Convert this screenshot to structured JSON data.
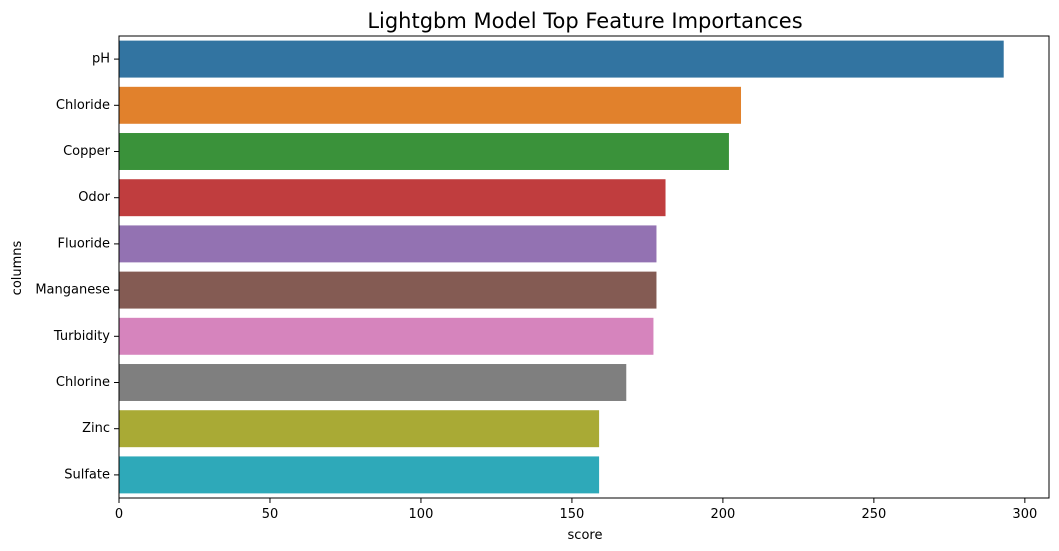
{
  "chart_data": {
    "type": "bar",
    "orientation": "horizontal",
    "title": "Lightgbm Model Top Feature Importances",
    "xlabel": "score",
    "ylabel": "columns",
    "xlim": [
      0,
      308
    ],
    "xticks": [
      0,
      50,
      100,
      150,
      200,
      250,
      300
    ],
    "grid": false,
    "categories": [
      "pH",
      "Chloride",
      "Copper",
      "Odor",
      "Fluoride",
      "Manganese",
      "Turbidity",
      "Chlorine",
      "Zinc",
      "Sulfate"
    ],
    "values": [
      293,
      206,
      202,
      181,
      178,
      178,
      177,
      168,
      159,
      159
    ],
    "colors": [
      "#3274a1",
      "#e1812c",
      "#3a923a",
      "#c03d3e",
      "#9372b2",
      "#845b53",
      "#d684bd",
      "#7f7f7f",
      "#a9aa35",
      "#2ea9b9"
    ]
  }
}
